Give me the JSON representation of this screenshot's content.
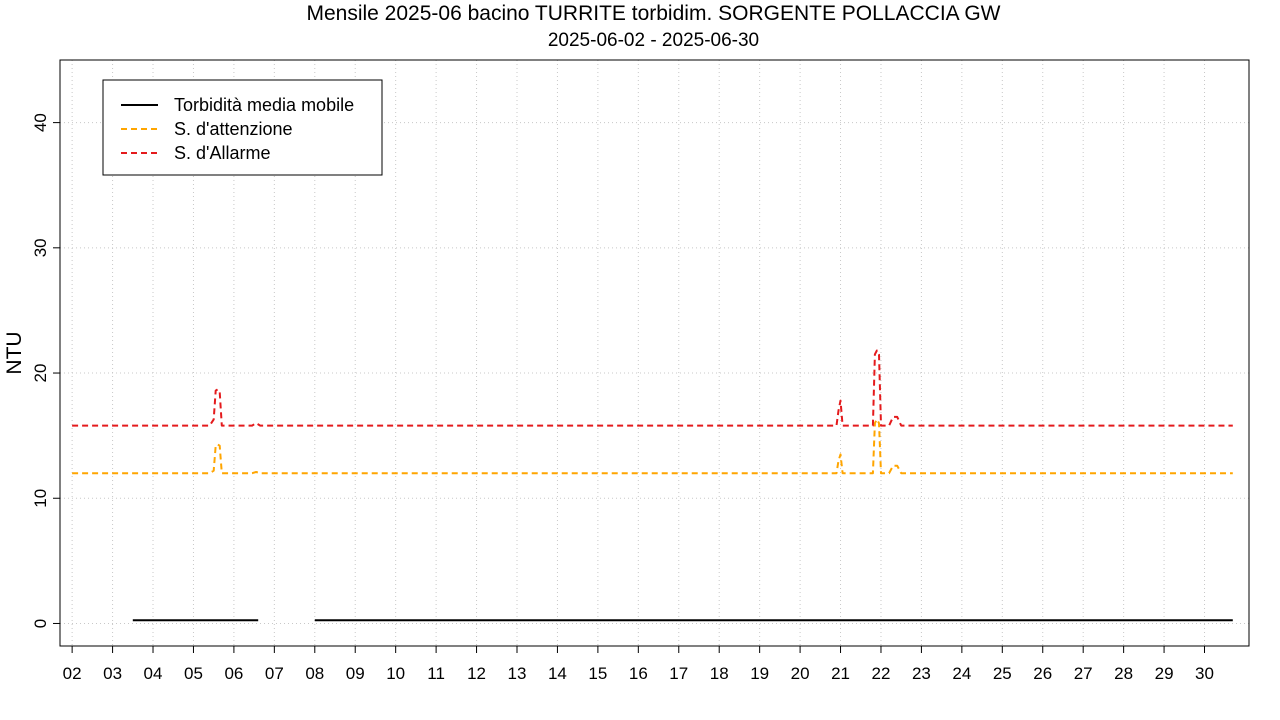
{
  "chart_data": {
    "type": "line",
    "title": "Mensile 2025-06 bacino TURRITE torbidim. SORGENTE POLLACCIA GW",
    "subtitle": "2025-06-02 - 2025-06-30",
    "ylabel": "NTU",
    "xlabel": "",
    "ylim": [
      -1.8,
      45
    ],
    "yticks": [
      0,
      10,
      20,
      30,
      40
    ],
    "xlim": [
      1.7,
      31.1
    ],
    "xticks": [
      2,
      3,
      4,
      5,
      6,
      7,
      8,
      9,
      10,
      11,
      12,
      13,
      14,
      15,
      16,
      17,
      18,
      19,
      20,
      21,
      22,
      23,
      24,
      25,
      26,
      27,
      28,
      29,
      30
    ],
    "xtick_labels": [
      "02",
      "03",
      "04",
      "05",
      "06",
      "07",
      "08",
      "09",
      "10",
      "11",
      "12",
      "13",
      "14",
      "15",
      "16",
      "17",
      "18",
      "19",
      "20",
      "21",
      "22",
      "23",
      "24",
      "25",
      "26",
      "27",
      "28",
      "29",
      "30"
    ],
    "grid": true,
    "legend_position": "top-left",
    "series": [
      {
        "name": "Torbidità media mobile",
        "color": "#000000",
        "dash": "solid",
        "segments": [
          [
            [
              3.5,
              0.25
            ],
            [
              6.6,
              0.25
            ]
          ],
          [
            [
              8.0,
              0.25
            ],
            [
              30.7,
              0.25
            ]
          ]
        ]
      },
      {
        "name": "S. d'attenzione",
        "color": "#ffa500",
        "dash": "dashed",
        "segments": [
          [
            [
              2.0,
              12.0
            ],
            [
              5.4,
              12.0
            ],
            [
              5.5,
              12.2
            ],
            [
              5.55,
              14.2
            ],
            [
              5.6,
              14.3
            ],
            [
              5.65,
              14.2
            ],
            [
              5.7,
              12.0
            ],
            [
              6.45,
              12.0
            ],
            [
              6.55,
              12.1
            ],
            [
              6.65,
              12.0
            ],
            [
              20.9,
              12.0
            ],
            [
              20.95,
              13.0
            ],
            [
              21.0,
              13.5
            ],
            [
              21.05,
              12.0
            ],
            [
              21.8,
              12.0
            ],
            [
              21.85,
              16.0
            ],
            [
              21.9,
              16.3
            ],
            [
              21.95,
              16.0
            ],
            [
              22.0,
              12.0
            ],
            [
              22.2,
              12.0
            ],
            [
              22.3,
              12.6
            ],
            [
              22.4,
              12.6
            ],
            [
              22.5,
              12.0
            ],
            [
              30.7,
              12.0
            ]
          ]
        ]
      },
      {
        "name": "S. d'Allarme",
        "color": "#e41a1c",
        "dash": "dashed",
        "segments": [
          [
            [
              2.0,
              15.8
            ],
            [
              5.4,
              15.8
            ],
            [
              5.5,
              16.3
            ],
            [
              5.55,
              18.6
            ],
            [
              5.6,
              18.7
            ],
            [
              5.65,
              18.5
            ],
            [
              5.7,
              15.8
            ],
            [
              6.45,
              15.8
            ],
            [
              6.55,
              16.0
            ],
            [
              6.65,
              15.8
            ],
            [
              20.9,
              15.8
            ],
            [
              20.95,
              17.0
            ],
            [
              21.0,
              17.8
            ],
            [
              21.05,
              15.8
            ],
            [
              21.8,
              15.8
            ],
            [
              21.85,
              21.5
            ],
            [
              21.9,
              21.8
            ],
            [
              21.95,
              21.5
            ],
            [
              22.0,
              15.8
            ],
            [
              22.2,
              15.8
            ],
            [
              22.3,
              16.5
            ],
            [
              22.4,
              16.5
            ],
            [
              22.5,
              15.8
            ],
            [
              30.7,
              15.8
            ]
          ]
        ]
      }
    ]
  }
}
